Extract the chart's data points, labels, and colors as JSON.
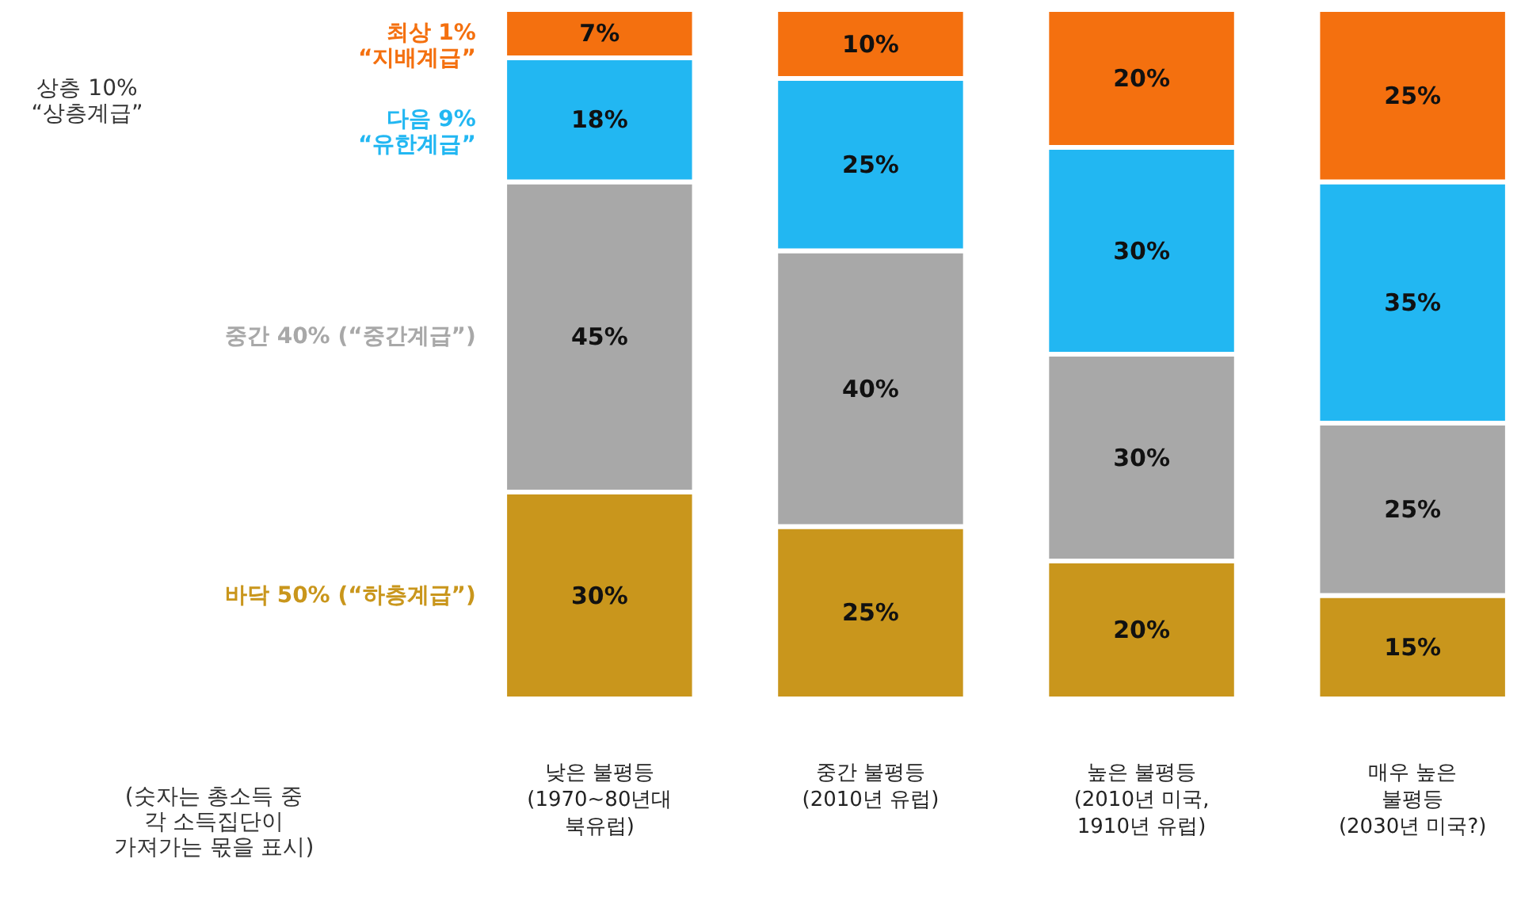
{
  "chart_data": {
    "type": "bar",
    "stacked": true,
    "categories": [
      "낮은 불평등\n(1970~80년대\n북유럽)",
      "중간 불평등\n(2010년 유럽)",
      "높은 불평등\n(2010년 미국,\n1910년 유럽)",
      "매우 높은\n불평등\n(2030년 미국?)"
    ],
    "series": [
      {
        "name": "바닥 50% (“하층계급”)",
        "color": "#c9961c",
        "values": [
          30,
          25,
          20,
          15
        ],
        "value_labels": [
          "30%",
          "25%",
          "20%",
          "15%"
        ]
      },
      {
        "name": "중간 40% (“중간계급”)",
        "color": "#a8a8a8",
        "values": [
          45,
          40,
          30,
          25
        ],
        "value_labels": [
          "45%",
          "40%",
          "30%",
          "25%"
        ]
      },
      {
        "name": "다음 9%\n“유한계급”",
        "color": "#22b7f2",
        "values": [
          18,
          25,
          30,
          35
        ],
        "value_labels": [
          "18%",
          "25%",
          "30%",
          "35%"
        ]
      },
      {
        "name": "최상 1%\n“지배계급”",
        "color": "#f4700f",
        "values": [
          7,
          10,
          20,
          25
        ],
        "value_labels": [
          "7%",
          "10%",
          "20%",
          "25%"
        ]
      }
    ],
    "annotations": [
      "상층 10%\n“상층계급”",
      "(숫자는 총소득 중\n각 소득집단이\n가져가는 몫을 표시)"
    ]
  }
}
